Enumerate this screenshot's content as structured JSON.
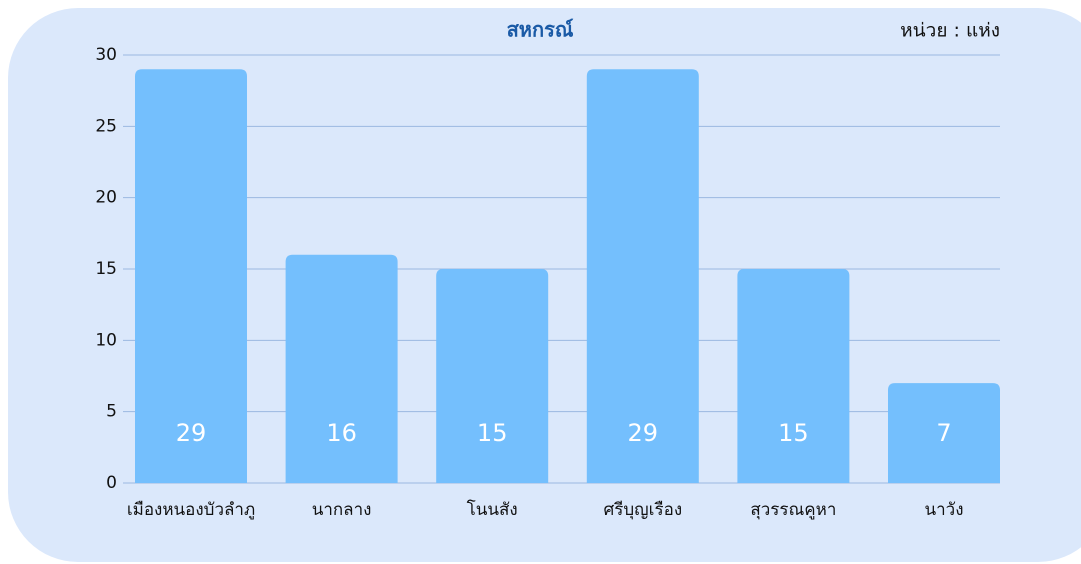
{
  "chart_data": {
    "type": "bar",
    "title": "สหกรณ์",
    "unit_label": "หน่วย : แห่ง",
    "categories": [
      "เมืองหนองบัวลำภู",
      "นากลาง",
      "โนนสัง",
      "ศรีบุญเรือง",
      "สุวรรณคูหา",
      "นาวัง"
    ],
    "values": [
      29,
      16,
      15,
      29,
      15,
      7
    ],
    "color": "#74bffd",
    "ylim": [
      0,
      30
    ],
    "yticks": [
      0,
      5,
      10,
      15,
      20,
      25,
      30
    ],
    "grid": true
  }
}
